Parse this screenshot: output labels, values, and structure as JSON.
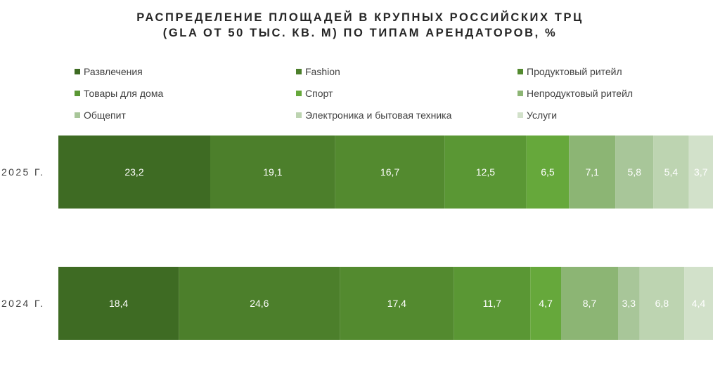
{
  "chart_data": {
    "type": "bar",
    "orientation": "horizontal",
    "stacked": true,
    "title": "РАСПРЕДЕЛЕНИЕ ПЛОЩАДЕЙ В КРУПНЫХ РОССИЙСКИХ ТРЦ",
    "subtitle": "(GLA ОТ 50 ТЫС. КВ. М) ПО ТИПАМ АРЕНДАТОРОВ, %",
    "categories": [
      "2025 Г.",
      "2024 Г."
    ],
    "legend_position": "top",
    "grid": false,
    "series": [
      {
        "name": "Развлечения",
        "color": "#3e6b23",
        "values": [
          23.2,
          18.4
        ],
        "labels": [
          "23,2",
          "18,4"
        ]
      },
      {
        "name": "Fashion",
        "color": "#4c7f2b",
        "values": [
          19.1,
          24.6
        ],
        "labels": [
          "19,1",
          "24,6"
        ]
      },
      {
        "name": "Продуктовый ритейл",
        "color": "#538a2f",
        "values": [
          16.7,
          17.4
        ],
        "labels": [
          "16,7",
          "17,4"
        ]
      },
      {
        "name": "Товары для дома",
        "color": "#5a9734",
        "values": [
          12.5,
          11.7
        ],
        "labels": [
          "12,5",
          "11,7"
        ]
      },
      {
        "name": "Спорт",
        "color": "#66a83b",
        "values": [
          6.5,
          4.7
        ],
        "labels": [
          "6,5",
          "4,7"
        ]
      },
      {
        "name": "Непродуктовый ритейл",
        "color": "#8cb574",
        "values": [
          7.1,
          8.7
        ],
        "labels": [
          "7,1",
          "8,7"
        ]
      },
      {
        "name": "Общепит",
        "color": "#a8c699",
        "values": [
          5.8,
          3.3
        ],
        "labels": [
          "5,8",
          "3,3"
        ]
      },
      {
        "name": "Электроника и бытовая техника",
        "color": "#bdd4b1",
        "values": [
          5.4,
          6.8
        ],
        "labels": [
          "5,4",
          "6,8"
        ]
      },
      {
        "name": "Услуги",
        "color": "#d2e1ca",
        "values": [
          3.7,
          4.4
        ],
        "labels": [
          "3,7",
          "4,4"
        ]
      }
    ]
  }
}
